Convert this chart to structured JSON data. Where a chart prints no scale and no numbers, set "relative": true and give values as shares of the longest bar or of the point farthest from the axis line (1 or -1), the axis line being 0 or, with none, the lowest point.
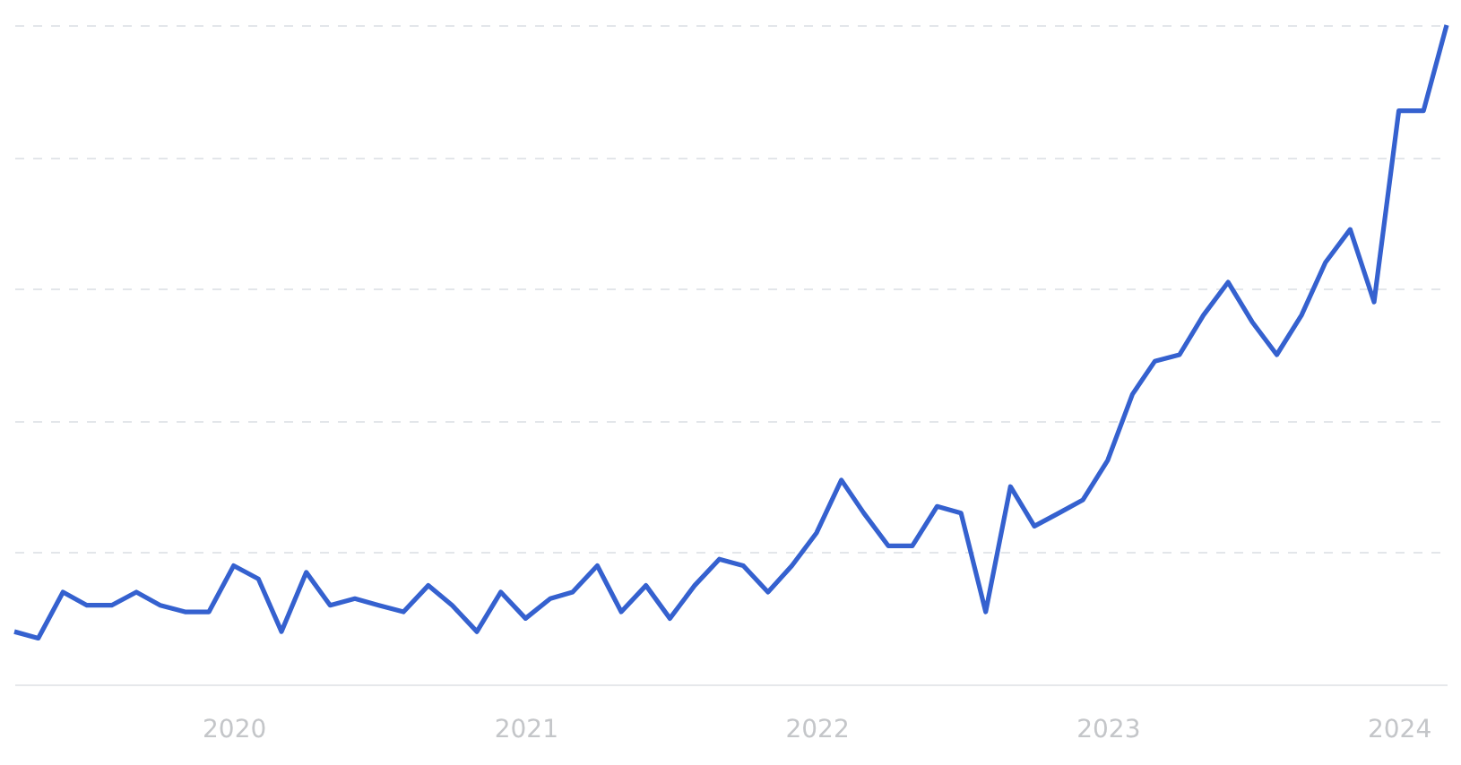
{
  "chart_data": {
    "type": "line",
    "relative": true,
    "grid": "y",
    "xlim": [
      "2019-04",
      "2024-03"
    ],
    "xticks": [
      "2020",
      "2021",
      "2022",
      "2023",
      "2024"
    ],
    "x": [
      "2019-04",
      "2019-05",
      "2019-06",
      "2019-07",
      "2019-08",
      "2019-09",
      "2019-10",
      "2019-11",
      "2019-12",
      "2020-01",
      "2020-02",
      "2020-03",
      "2020-04",
      "2020-05",
      "2020-06",
      "2020-07",
      "2020-08",
      "2020-09",
      "2020-10",
      "2020-11",
      "2020-12",
      "2021-01",
      "2021-02",
      "2021-03",
      "2021-04",
      "2021-05",
      "2021-06",
      "2021-07",
      "2021-08",
      "2021-09",
      "2021-10",
      "2021-11",
      "2021-12",
      "2022-01",
      "2022-02",
      "2022-03",
      "2022-04",
      "2022-05",
      "2022-06",
      "2022-07",
      "2022-08",
      "2022-09",
      "2022-10",
      "2022-11",
      "2022-12",
      "2023-01",
      "2023-02",
      "2023-03",
      "2023-04",
      "2023-05",
      "2023-06",
      "2023-07",
      "2023-08",
      "2023-09",
      "2023-10",
      "2023-11",
      "2023-12",
      "2024-01",
      "2024-02",
      "2024-03"
    ],
    "series": [
      {
        "color": "#3561cf",
        "values": [
          0.08,
          0.07,
          0.14,
          0.12,
          0.12,
          0.14,
          0.12,
          0.11,
          0.11,
          0.18,
          0.16,
          0.08,
          0.17,
          0.12,
          0.13,
          0.12,
          0.11,
          0.15,
          0.12,
          0.08,
          0.14,
          0.1,
          0.13,
          0.14,
          0.18,
          0.11,
          0.15,
          0.1,
          0.15,
          0.19,
          0.18,
          0.14,
          0.18,
          0.23,
          0.31,
          0.26,
          0.21,
          0.21,
          0.27,
          0.26,
          0.11,
          0.3,
          0.24,
          0.26,
          0.28,
          0.34,
          0.44,
          0.49,
          0.5,
          0.56,
          0.61,
          0.55,
          0.5,
          0.56,
          0.64,
          0.69,
          0.58,
          0.87,
          0.87,
          1
        ]
      }
    ]
  }
}
